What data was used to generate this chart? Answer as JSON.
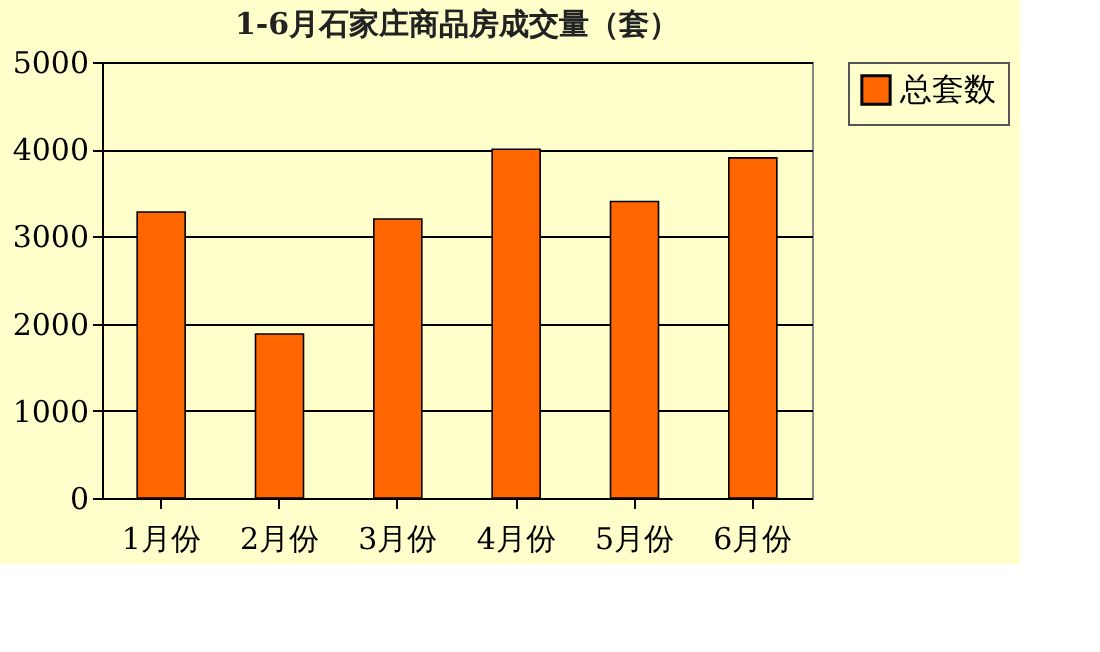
{
  "chart_data": {
    "type": "bar",
    "title": "1-6月石家庄商品房成交量（套）",
    "categories": [
      "1月份",
      "2月份",
      "3月份",
      "4月份",
      "5月份",
      "6月份"
    ],
    "series": [
      {
        "name": "总套数",
        "color": "#ff6600",
        "values": [
          3280,
          1880,
          3200,
          4000,
          3400,
          3900
        ]
      }
    ],
    "ylim": [
      0,
      5000
    ],
    "yticks": [
      0,
      1000,
      2000,
      3000,
      4000,
      5000
    ],
    "grid": "y",
    "legend": "right"
  }
}
